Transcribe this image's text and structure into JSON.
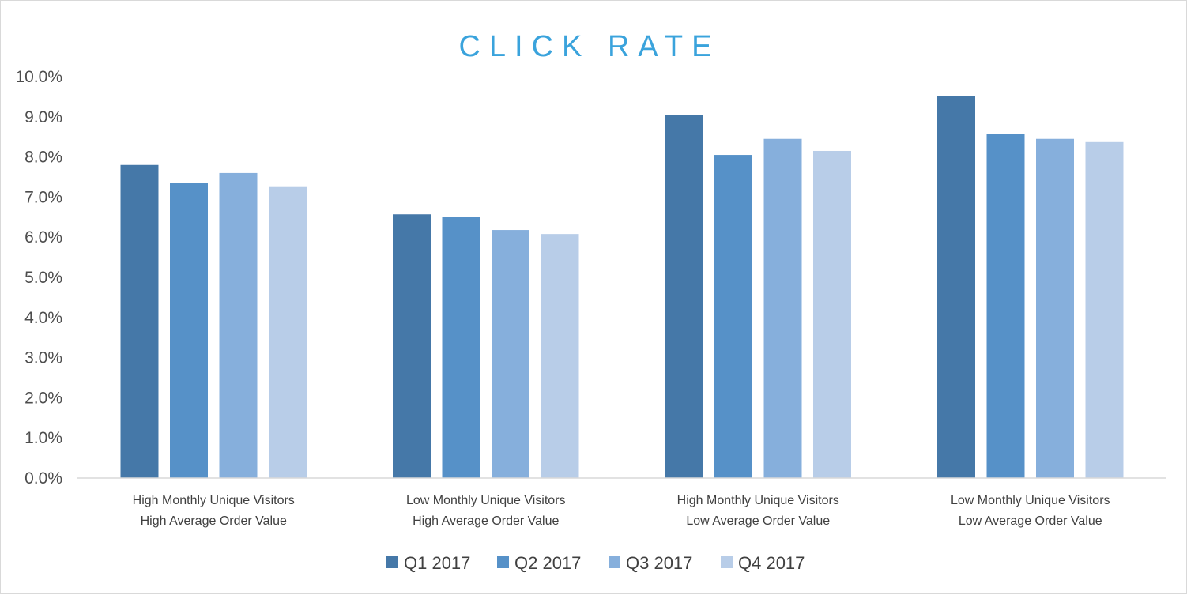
{
  "chart_data": {
    "type": "bar",
    "title": "CLICK RATE",
    "xlabel": "",
    "ylabel": "",
    "ylim": [
      0,
      10
    ],
    "y_ticks": [
      "0.0%",
      "1.0%",
      "2.0%",
      "3.0%",
      "4.0%",
      "5.0%",
      "6.0%",
      "7.0%",
      "8.0%",
      "9.0%",
      "10.0%"
    ],
    "categories": [
      [
        "High Monthly Unique Visitors",
        "High Average Order Value"
      ],
      [
        "Low Monthly Unique Visitors",
        "High Average Order Value"
      ],
      [
        "High Monthly Unique Visitors",
        "Low Average Order Value"
      ],
      [
        "Low Monthly Unique Visitors",
        "Low Average Order Value"
      ]
    ],
    "series": [
      {
        "name": "Q1 2017",
        "color": "#4578a8",
        "values": [
          7.8,
          6.57,
          9.05,
          9.52
        ]
      },
      {
        "name": "Q2 2017",
        "color": "#5691c8",
        "values": [
          7.36,
          6.5,
          8.05,
          8.57
        ]
      },
      {
        "name": "Q3 2017",
        "color": "#86afdc",
        "values": [
          7.6,
          6.18,
          8.45,
          8.45
        ]
      },
      {
        "name": "Q4 2017",
        "color": "#b8cde8",
        "values": [
          7.25,
          6.08,
          8.15,
          8.37
        ]
      }
    ],
    "grid": false,
    "legend_position": "bottom"
  }
}
